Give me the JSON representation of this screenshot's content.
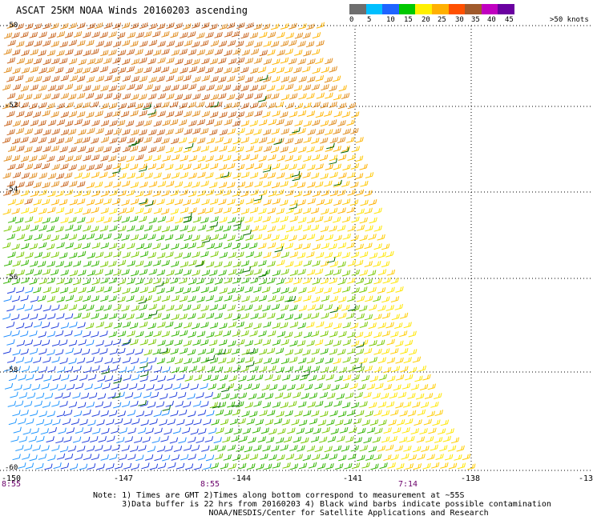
{
  "title": "ASCAT 25KM NOAA Winds 20160203 ascending",
  "legend": {
    "labels": [
      "0",
      "5",
      "10",
      "15",
      "20",
      "25",
      "30",
      "35",
      "40",
      "45",
      ">50 knots"
    ],
    "colors": [
      "#6e6e6e",
      "#00bfff",
      "#1e64ff",
      "#00c800",
      "#fff000",
      "#ffb000",
      "#ff5000",
      "#a05a2c",
      "#c000c0",
      "#6a00a0"
    ]
  },
  "lat_labels": [
    "-50",
    "-52",
    "-54",
    "-56",
    "-58",
    "-60"
  ],
  "lon_labels": [
    "-150",
    "-147",
    "-144",
    "-141",
    "-138",
    "-13"
  ],
  "time_labels": [
    "8:55",
    "8:55",
    "7:14"
  ],
  "notes": [
    "Note: 1) Times are GMT 2)Times along bottom correspond to measurement at ~55S",
    "      3)Data buffer is 22 hrs from 20160203 4) Black wind barbs indicate possible contamination",
    "                        NOAA/NESDIS/Center for Satellite Applications and Research"
  ],
  "map_data": {
    "lat_range": [
      -60,
      -50
    ],
    "lon_range": [
      -150,
      -138
    ],
    "wind_speed_units": "knots",
    "color_zones": [
      {
        "region": "northwest",
        "speed": "30-35",
        "color": "#c8641e"
      },
      {
        "region": "north-central",
        "speed": "25-30",
        "color": "#ffb000"
      },
      {
        "region": "east-central",
        "speed": "20-25",
        "color": "#f0d800"
      },
      {
        "region": "southwest",
        "speed": "10-15",
        "color": "#1e46dc"
      },
      {
        "region": "south-central",
        "speed": "15-20",
        "color": "#28b400"
      }
    ]
  }
}
